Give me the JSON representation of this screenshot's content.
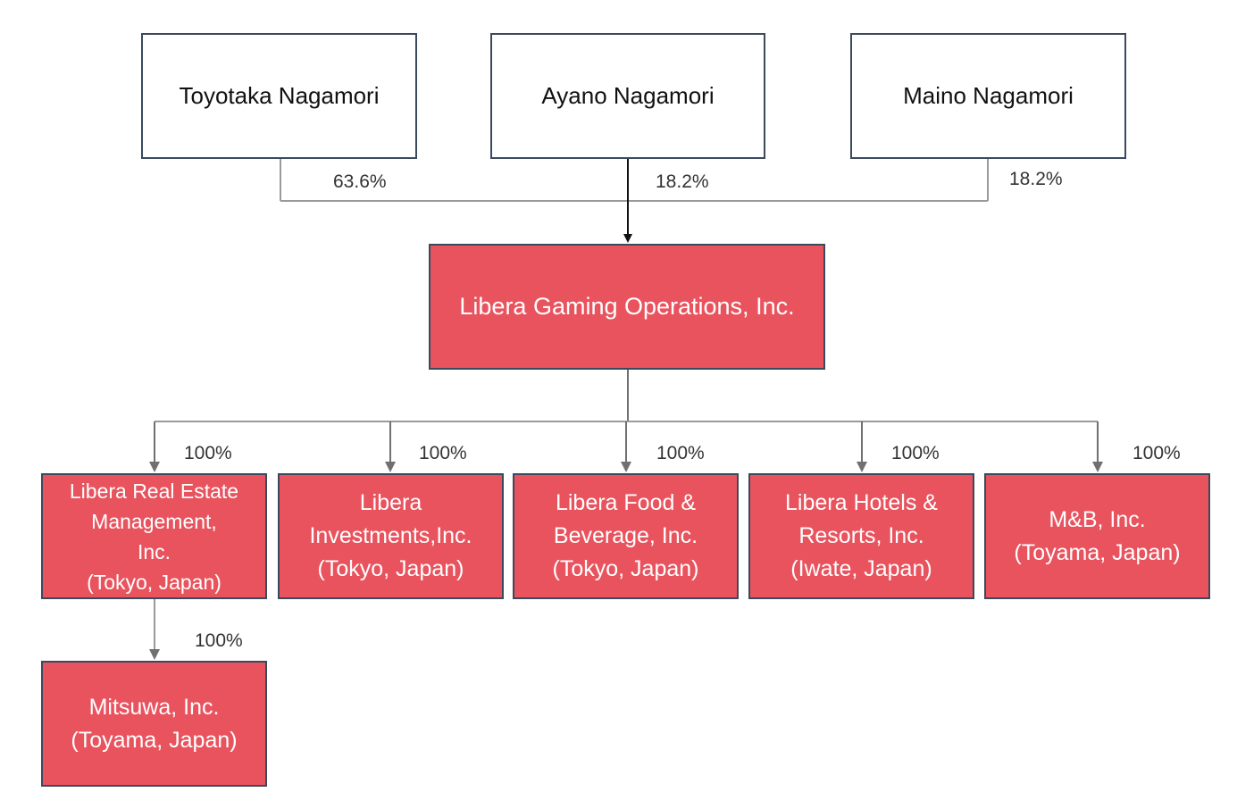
{
  "owners": [
    {
      "name": "Toyotaka Nagamori",
      "stake": "63.6%"
    },
    {
      "name": "Ayano Nagamori",
      "stake": "18.2%"
    },
    {
      "name": "Maino Nagamori",
      "stake": "18.2%"
    }
  ],
  "parent": {
    "name": "Libera Gaming Operations, Inc."
  },
  "subsidiaries": [
    {
      "lines": [
        "Libera Real Estate",
        "Management,",
        "Inc.",
        "(Tokyo, Japan)"
      ],
      "stake": "100%"
    },
    {
      "lines": [
        "Libera",
        "Investments,Inc.",
        "(Tokyo, Japan)"
      ],
      "stake": "100%"
    },
    {
      "lines": [
        "Libera Food &",
        "Beverage, Inc.",
        "(Tokyo, Japan)"
      ],
      "stake": "100%"
    },
    {
      "lines": [
        "Libera Hotels &",
        "Resorts, Inc.",
        "(Iwate, Japan)"
      ],
      "stake": "100%"
    },
    {
      "lines": [
        "M&B, Inc.",
        "(Toyama, Japan)"
      ],
      "stake": "100%"
    }
  ],
  "sub_subsidiary": {
    "lines": [
      "Mitsuwa, Inc.",
      "(Toyama, Japan)"
    ],
    "stake": "100%"
  },
  "colors": {
    "entity_fill": "#e8535e",
    "border": "#3a4a5c",
    "owner_fill": "#ffffff",
    "connector": "#9a9a9a",
    "arrow": "#111111"
  }
}
